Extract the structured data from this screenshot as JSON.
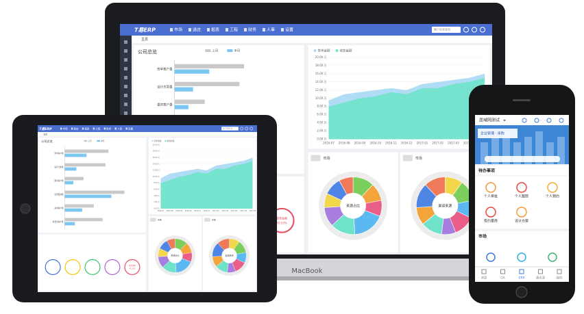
{
  "app": {
    "brand": "T易ERP",
    "menu": [
      "市场",
      "进店",
      "报表",
      "工程",
      "财务",
      "人事",
      "设置"
    ],
    "search": "客户信息查询",
    "tab": "主页",
    "device_label": "MacBook"
  },
  "chart_data": [
    {
      "type": "bar",
      "title": "公司总览",
      "categories": [
        "签单客户量",
        "设计方案量",
        "量房客户量",
        "业务跟进量",
        "意向客户量",
        "总会员客户量"
      ],
      "series": [
        {
          "name": "上月",
          "color": "#c9c9c9",
          "values": [
            300,
            280,
            130,
            410,
            200,
            260
          ]
        },
        {
          "name": "本月",
          "color": "#7cc6f2",
          "values": [
            150,
            80,
            60,
            320,
            120,
            70
          ]
        }
      ],
      "xlim": [
        0,
        500
      ]
    },
    {
      "type": "area",
      "categories": [
        "2016-07",
        "2016-08",
        "2016-09",
        "2016-10",
        "2016-11",
        "2016-12",
        "2017-01",
        "2017-02",
        "2017-03",
        "2017-04",
        "2017-05"
      ],
      "series": [
        {
          "name": "签单金额",
          "color": "#a9d8f5",
          "values": [
            9.5,
            11,
            11.5,
            12,
            12.5,
            12,
            13.5,
            14,
            14.5,
            15,
            16
          ]
        },
        {
          "name": "收款金额",
          "color": "#6fe3c9",
          "values": [
            8,
            9,
            10,
            10.5,
            11.5,
            11,
            12.5,
            12.5,
            13.5,
            14,
            15
          ]
        }
      ],
      "ylim": [
        0,
        20
      ],
      "yticks": [
        {
          "value": 0,
          "label": "0.00 万"
        },
        {
          "value": 2,
          "label": "2.00 万"
        },
        {
          "value": 4,
          "label": "4.00 万"
        },
        {
          "value": 6,
          "label": "6.00 万"
        },
        {
          "value": 8,
          "label": "8.00 万"
        },
        {
          "value": 10,
          "label": "10.00 万"
        },
        {
          "value": 12,
          "label": "12.00 万"
        },
        {
          "value": 14,
          "label": "14.00 万"
        },
        {
          "value": 16,
          "label": "16.00 万"
        },
        {
          "value": 18,
          "label": "18.00 万"
        },
        {
          "value": 20,
          "label": "20.00 万"
        }
      ],
      "grid": true
    },
    {
      "type": "pie",
      "title": "市场",
      "center_label": "来源占比",
      "values": [
        12,
        10,
        9,
        18,
        14,
        11,
        8,
        10,
        8
      ],
      "colors": [
        "#7ccf5c",
        "#f3a53b",
        "#e95f8a",
        "#5cb8f0",
        "#6fe3c9",
        "#a77de0",
        "#f2d64b",
        "#4f86e6",
        "#ef7a5a"
      ]
    },
    {
      "type": "pie",
      "title": "市场",
      "center_label": "渠道来源",
      "values": [
        10,
        12,
        10,
        12,
        8,
        12,
        10,
        14,
        12
      ],
      "colors": [
        "#f2d64b",
        "#7ccf5c",
        "#5cb8f0",
        "#e95f8a",
        "#a77de0",
        "#6fe3c9",
        "#f3a53b",
        "#4f86e6",
        "#ef7a5a"
      ]
    }
  ],
  "gauge": {
    "label": "签单金额",
    "value_label": "43.53%"
  },
  "phone": {
    "title": "居域网测试",
    "banner": "企业管理 · 采购",
    "todo_title": "待办事项",
    "todo": [
      "个人审批",
      "个人跟踪",
      "个人预约",
      "签约量房",
      "设计方案"
    ],
    "market_title": "市场",
    "nav": [
      "消息",
      "OA",
      "ERP",
      "通讯录",
      "我的"
    ]
  }
}
